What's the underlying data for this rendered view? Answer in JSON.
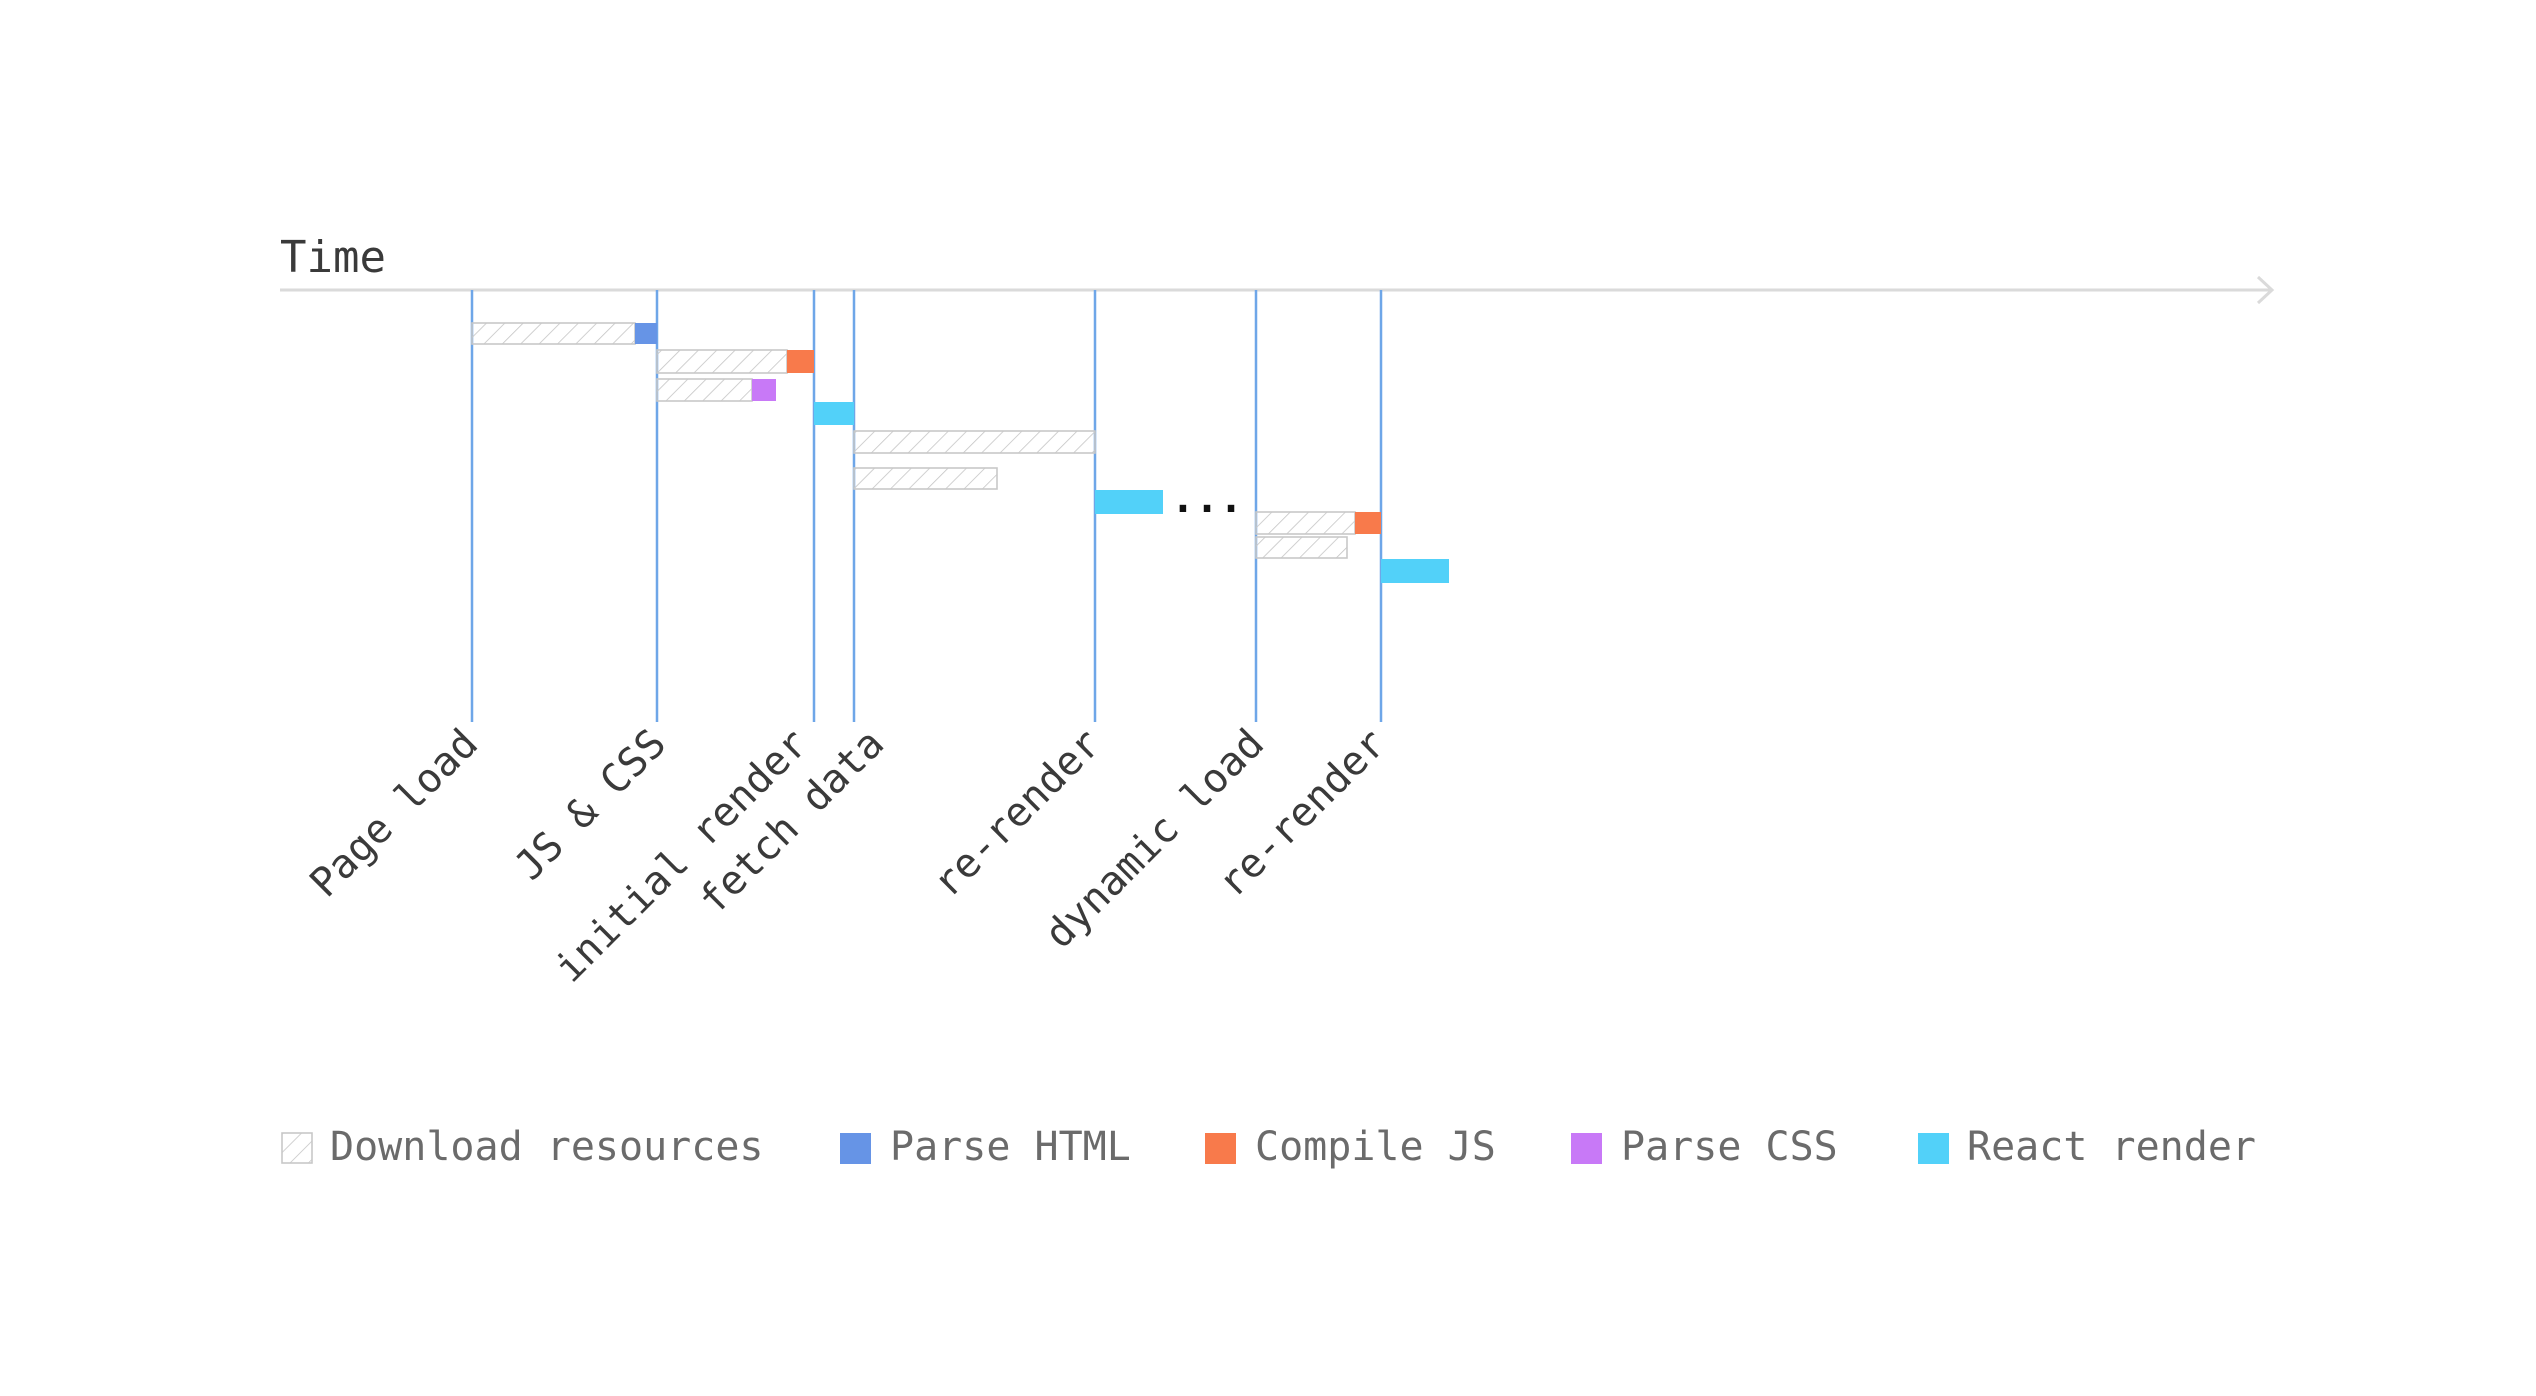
{
  "axis": {
    "label": "Time",
    "color": "#dadada"
  },
  "colors": {
    "marker_line": "#6ea6e8",
    "download_stroke": "#c8c8c8",
    "download_hatch": "#c4c4c4",
    "parse_html": "#6694e6",
    "compile_js": "#f87a4b",
    "parse_css": "#c879f7",
    "react_render": "#52d1f9",
    "label_text": "#3a3a3a",
    "legend_text": "#6b6b6b"
  },
  "markers": [
    {
      "label": "Page load"
    },
    {
      "label": "JS & CSS"
    },
    {
      "label": "initial render"
    },
    {
      "label": "fetch data"
    },
    {
      "label": "re-render"
    },
    {
      "label": "dynamic load"
    },
    {
      "label": "re-render"
    }
  ],
  "ellipsis": "...",
  "legend": [
    {
      "label": "Download resources",
      "kind": "download"
    },
    {
      "label": "Parse HTML",
      "kind": "parse_html"
    },
    {
      "label": "Compile JS",
      "kind": "compile_js"
    },
    {
      "label": "Parse CSS",
      "kind": "parse_css"
    },
    {
      "label": "React render",
      "kind": "react_render"
    }
  ]
}
